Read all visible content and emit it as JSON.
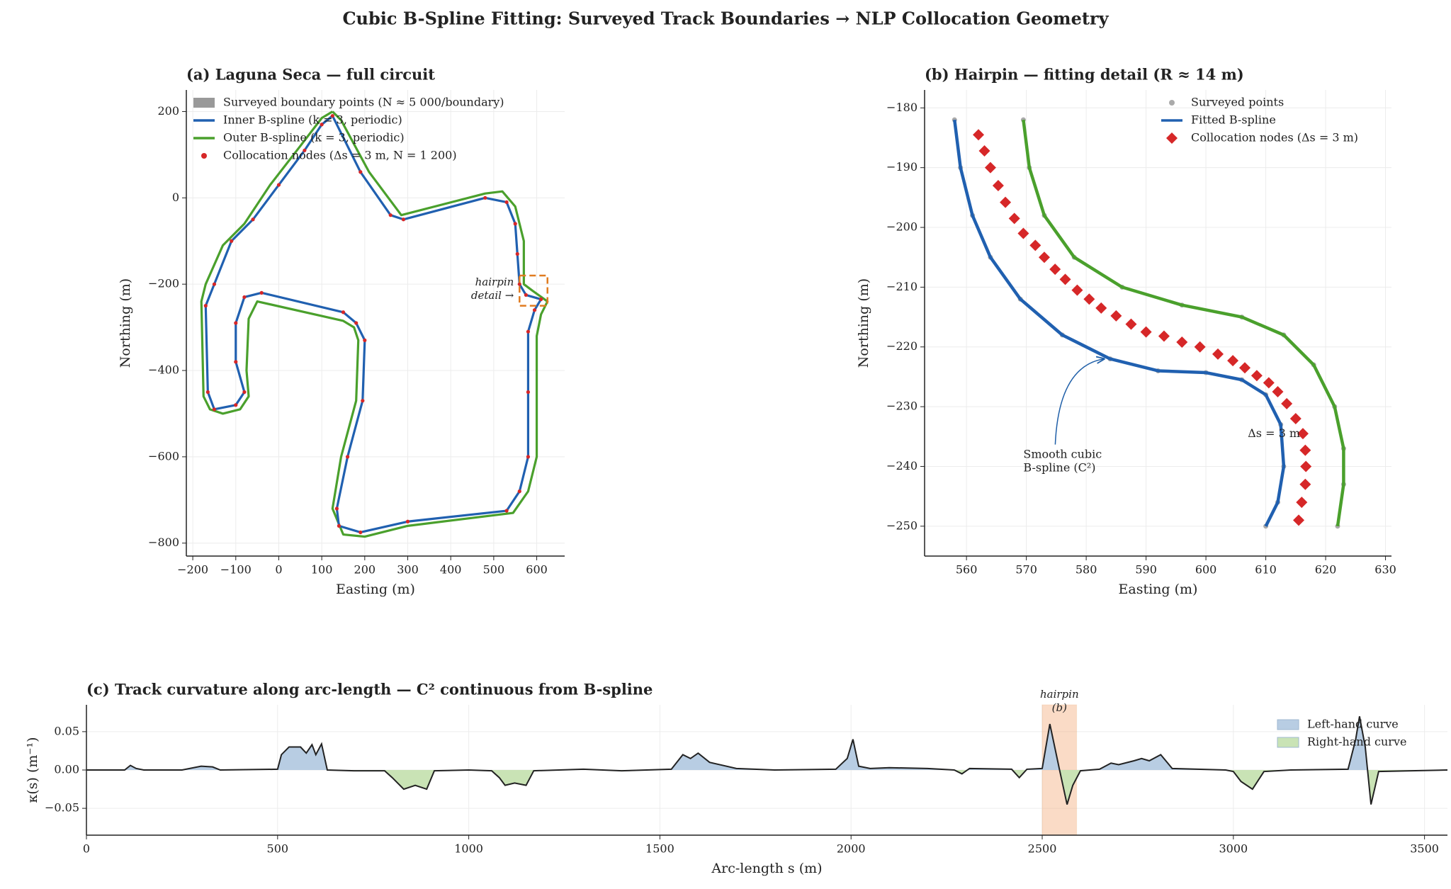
{
  "title": "Cubic B-Spline Fitting: Surveyed Track Boundaries → NLP Collocation Geometry",
  "chart_data": [
    {
      "type": "line",
      "title": "(a)  Laguna Seca — full circuit",
      "xlabel": "Easting (m)",
      "ylabel": "Northing (m)",
      "xlim": [
        -215,
        665
      ],
      "ylim": [
        -830,
        250
      ],
      "xticks": [
        {
          "value": -200,
          "label": "−200"
        },
        {
          "value": -100,
          "label": "−100"
        },
        0,
        100,
        200,
        300,
        400,
        500,
        600
      ],
      "yticks": [
        {
          "value": -800,
          "label": "−800"
        },
        {
          "value": -600,
          "label": "−600"
        },
        {
          "value": -400,
          "label": "−400"
        },
        {
          "value": -200,
          "label": "−200"
        },
        0,
        200
      ],
      "grid": true,
      "legend": "upper left",
      "series": [
        {
          "name": "Surveyed boundary points  (N ≈ 5 000/boundary)",
          "kind": "patch",
          "color": "#999999"
        },
        {
          "name": "Inner B-spline  (k = 3, periodic)",
          "kind": "line",
          "color": "#2060b0",
          "x": [
            125,
            190,
            260,
            290,
            480,
            530,
            550,
            555,
            560,
            575,
            610,
            595,
            580,
            580,
            580,
            560,
            530,
            300,
            190,
            140,
            135,
            160,
            195,
            200,
            180,
            150,
            -40,
            -80,
            -100,
            -100,
            -80,
            -100,
            -150,
            -165,
            -170,
            -150,
            -110,
            -60,
            0,
            60,
            100,
            125
          ],
          "y": [
            190,
            60,
            -40,
            -50,
            0,
            -10,
            -60,
            -130,
            -200,
            -225,
            -235,
            -260,
            -310,
            -450,
            -600,
            -680,
            -725,
            -750,
            -775,
            -760,
            -720,
            -600,
            -470,
            -330,
            -290,
            -265,
            -220,
            -230,
            -290,
            -380,
            -450,
            -480,
            -490,
            -450,
            -250,
            -200,
            -100,
            -50,
            30,
            110,
            170,
            190
          ]
        },
        {
          "name": "Outer B-spline  (k = 3, periodic)",
          "kind": "line",
          "color": "#4aa02c",
          "x": [
            125,
            145,
            210,
            285,
            480,
            520,
            550,
            570,
            570,
            590,
            625,
            610,
            600,
            600,
            580,
            545,
            300,
            200,
            150,
            125,
            145,
            180,
            185,
            175,
            150,
            -50,
            -70,
            -75,
            -70,
            -90,
            -130,
            -160,
            -175,
            -180,
            -170,
            -130,
            -80,
            -20,
            50,
            100,
            125
          ],
          "y": [
            200,
            180,
            60,
            -40,
            10,
            15,
            -20,
            -100,
            -200,
            -215,
            -240,
            -270,
            -320,
            -600,
            -680,
            -730,
            -760,
            -785,
            -780,
            -720,
            -600,
            -470,
            -330,
            -300,
            -285,
            -240,
            -280,
            -400,
            -460,
            -490,
            -500,
            -490,
            -460,
            -240,
            -200,
            -110,
            -60,
            30,
            120,
            185,
            200
          ]
        },
        {
          "name": "Collocation nodes  (Δs = 3 m,  N = 1 200)",
          "kind": "scatter",
          "marker": "o",
          "color": "#d62728",
          "x": [
            125,
            190,
            260,
            290,
            480,
            530,
            550,
            555,
            560,
            575,
            610,
            595,
            580,
            580,
            580,
            560,
            530,
            300,
            190,
            140,
            135,
            160,
            195,
            200,
            180,
            150,
            -40,
            -80,
            -100,
            -100,
            -80,
            -100,
            -150,
            -165,
            -170,
            -150,
            -110,
            -60,
            0,
            60,
            100
          ],
          "y": [
            190,
            60,
            -40,
            -50,
            0,
            -10,
            -60,
            -130,
            -200,
            -225,
            -235,
            -260,
            -310,
            -450,
            -600,
            -680,
            -725,
            -750,
            -775,
            -760,
            -720,
            -600,
            -470,
            -330,
            -290,
            -265,
            -220,
            -230,
            -290,
            -380,
            -450,
            -480,
            -490,
            -450,
            -250,
            -200,
            -100,
            -50,
            30,
            110,
            170
          ]
        }
      ],
      "boxes": [
        {
          "x": [
            560,
            625
          ],
          "y": [
            -250,
            -180
          ],
          "color": "#e07b20",
          "label": [
            "hairpin",
            "detail →"
          ]
        }
      ]
    },
    {
      "type": "line",
      "title": "(b)  Hairpin — fitting detail  (R ≈ 14 m)",
      "xlabel": "Easting (m)",
      "ylabel": "Northing (m)",
      "xlim": [
        553,
        631
      ],
      "ylim": [
        -255,
        -177
      ],
      "xticks": [
        560,
        570,
        580,
        590,
        600,
        610,
        620,
        630
      ],
      "yticks": [
        {
          "value": -250,
          "label": "−250"
        },
        {
          "value": -240,
          "label": "−240"
        },
        {
          "value": -230,
          "label": "−230"
        },
        {
          "value": -220,
          "label": "−220"
        },
        {
          "value": -210,
          "label": "−210"
        },
        {
          "value": -200,
          "label": "−200"
        },
        {
          "value": -190,
          "label": "−190"
        },
        {
          "value": -180,
          "label": "−180"
        }
      ],
      "grid": true,
      "legend": "upper right",
      "series": [
        {
          "name": "Surveyed points",
          "kind": "scatter",
          "marker": "o",
          "color": "#aaaaaa",
          "x": [
            558,
            559,
            561,
            564,
            569,
            576,
            584,
            592,
            600,
            606,
            610,
            612.5,
            613,
            612,
            610,
            569.5,
            570.5,
            573,
            578,
            586,
            596,
            606,
            613,
            618,
            621.5,
            623,
            623,
            622
          ],
          "y": [
            -182,
            -190,
            -198,
            -205,
            -212,
            -218,
            -222,
            -224,
            -224.3,
            -225.5,
            -228,
            -233,
            -240,
            -246,
            -250,
            -182,
            -190,
            -198,
            -205,
            -210,
            -213,
            -215,
            -218,
            -223,
            -230,
            -237,
            -243,
            -250
          ]
        },
        {
          "name": "Fitted B-spline",
          "kind": "line",
          "color": "#2060b0",
          "x": [
            558,
            559,
            561,
            564,
            569,
            576,
            584,
            592,
            600,
            606,
            610,
            612.5,
            613,
            612,
            610
          ],
          "y": [
            -182,
            -190,
            -198,
            -205,
            -212,
            -218,
            -222,
            -224,
            -224.3,
            -225.5,
            -228,
            -233,
            -240,
            -246,
            -250
          ]
        },
        {
          "kind": "line",
          "color": "#4aa02c",
          "x": [
            569.5,
            570.5,
            573,
            578,
            586,
            596,
            606,
            613,
            618,
            621.5,
            623,
            623,
            622
          ],
          "y": [
            -182,
            -190,
            -198,
            -205,
            -210,
            -213,
            -215,
            -218,
            -223,
            -230,
            -237,
            -243,
            -250
          ]
        },
        {
          "name": "Collocation nodes  (Δs = 3 m)",
          "kind": "scatter",
          "marker": "D",
          "color": "#d62728",
          "x": [
            562,
            563,
            564,
            565.3,
            566.5,
            568,
            569.5,
            571.5,
            573,
            574.8,
            576.5,
            578.5,
            580.5,
            582.5,
            585,
            587.5,
            590,
            593,
            596,
            599,
            602,
            604.5,
            606.5,
            608.5,
            610.5,
            612,
            613.5,
            615,
            616.2,
            616.6,
            616.7,
            616.6,
            616,
            615.5
          ],
          "y": [
            -184.5,
            -187.2,
            -190,
            -193,
            -195.8,
            -198.5,
            -201,
            -203,
            -205,
            -207,
            -208.7,
            -210.5,
            -212,
            -213.5,
            -214.8,
            -216.2,
            -217.5,
            -218.2,
            -219.2,
            -220,
            -221.2,
            -222.3,
            -223.5,
            -224.8,
            -226,
            -227.5,
            -229.5,
            -232,
            -234.5,
            -237.3,
            -240,
            -243,
            -246,
            -249
          ]
        }
      ],
      "annotations": [
        {
          "text": [
            "Smooth cubic",
            "B-spline  (C²)"
          ],
          "x": 569.5,
          "y": -238,
          "color": "#1f5fa8",
          "arrow_to": [
            583,
            -222
          ]
        },
        {
          "text": [
            "Δs = 3 m"
          ],
          "x": 607,
          "y": -234.5,
          "color": "#cc2020"
        }
      ]
    },
    {
      "type": "area",
      "title": "(c)  Track curvature along arc-length — C² continuous from B-spline",
      "xlabel": "Arc-length  s  (m)",
      "ylabel": "κ(s)  (m⁻¹)",
      "xlim": [
        0,
        3560
      ],
      "ylim": [
        -0.085,
        0.085
      ],
      "xticks": [
        0,
        500,
        1000,
        1500,
        2000,
        2500,
        3000,
        3500
      ],
      "yticks": [
        {
          "value": -0.05,
          "label": "−0.05"
        },
        {
          "value": 0,
          "label": "0.00"
        },
        {
          "value": 0.05,
          "label": "0.05"
        }
      ],
      "grid": true,
      "legend": "upper right",
      "fills": [
        {
          "name": "Left-hand curve",
          "color": "#b8cde3"
        },
        {
          "name": "Right-hand curve",
          "color": "#c9e3b5"
        }
      ],
      "series": [
        {
          "kind": "line",
          "color": "#222222",
          "x": [
            0,
            100,
            115,
            130,
            150,
            250,
            300,
            330,
            350,
            500,
            510,
            530,
            560,
            575,
            590,
            600,
            615,
            630,
            700,
            780,
            800,
            830,
            860,
            890,
            910,
            1000,
            1060,
            1080,
            1095,
            1120,
            1150,
            1170,
            1300,
            1400,
            1530,
            1560,
            1580,
            1600,
            1630,
            1700,
            1800,
            1960,
            1990,
            2005,
            2020,
            2050,
            2100,
            2200,
            2270,
            2290,
            2310,
            2420,
            2440,
            2460,
            2500,
            2520,
            2545,
            2565,
            2580,
            2600,
            2650,
            2680,
            2700,
            2740,
            2760,
            2780,
            2810,
            2840,
            2980,
            3000,
            3020,
            3050,
            3080,
            3150,
            3300,
            3320,
            3330,
            3345,
            3360,
            3380,
            3560
          ],
          "values": [
            0,
            0,
            0.006,
            0.002,
            0,
            0,
            0.005,
            0.004,
            0,
            0.001,
            0.02,
            0.03,
            0.03,
            0.022,
            0.033,
            0.02,
            0.034,
            0,
            -0.001,
            -0.001,
            -0.01,
            -0.025,
            -0.02,
            -0.025,
            -0.001,
            0,
            -0.001,
            -0.01,
            -0.02,
            -0.017,
            -0.02,
            -0.001,
            0.001,
            -0.001,
            0.001,
            0.02,
            0.015,
            0.022,
            0.01,
            0.002,
            0,
            0.001,
            0.015,
            0.04,
            0.005,
            0.002,
            0.003,
            0.002,
            0,
            -0.005,
            0.002,
            0.001,
            -0.01,
            0.001,
            0.002,
            0.06,
            0.001,
            -0.045,
            -0.02,
            -0.001,
            0.001,
            0.009,
            0.007,
            0.012,
            0.015,
            0.012,
            0.02,
            0.002,
            0,
            -0.002,
            -0.015,
            -0.025,
            -0.002,
            0,
            0.001,
            0.04,
            0.07,
            0.03,
            -0.045,
            -0.002,
            0
          ]
        }
      ],
      "spans": [
        {
          "x": [
            2500,
            2590
          ],
          "color": "#f4b183",
          "label_color": "#e07b20",
          "label": [
            "hairpin",
            "(b)"
          ]
        }
      ]
    }
  ]
}
